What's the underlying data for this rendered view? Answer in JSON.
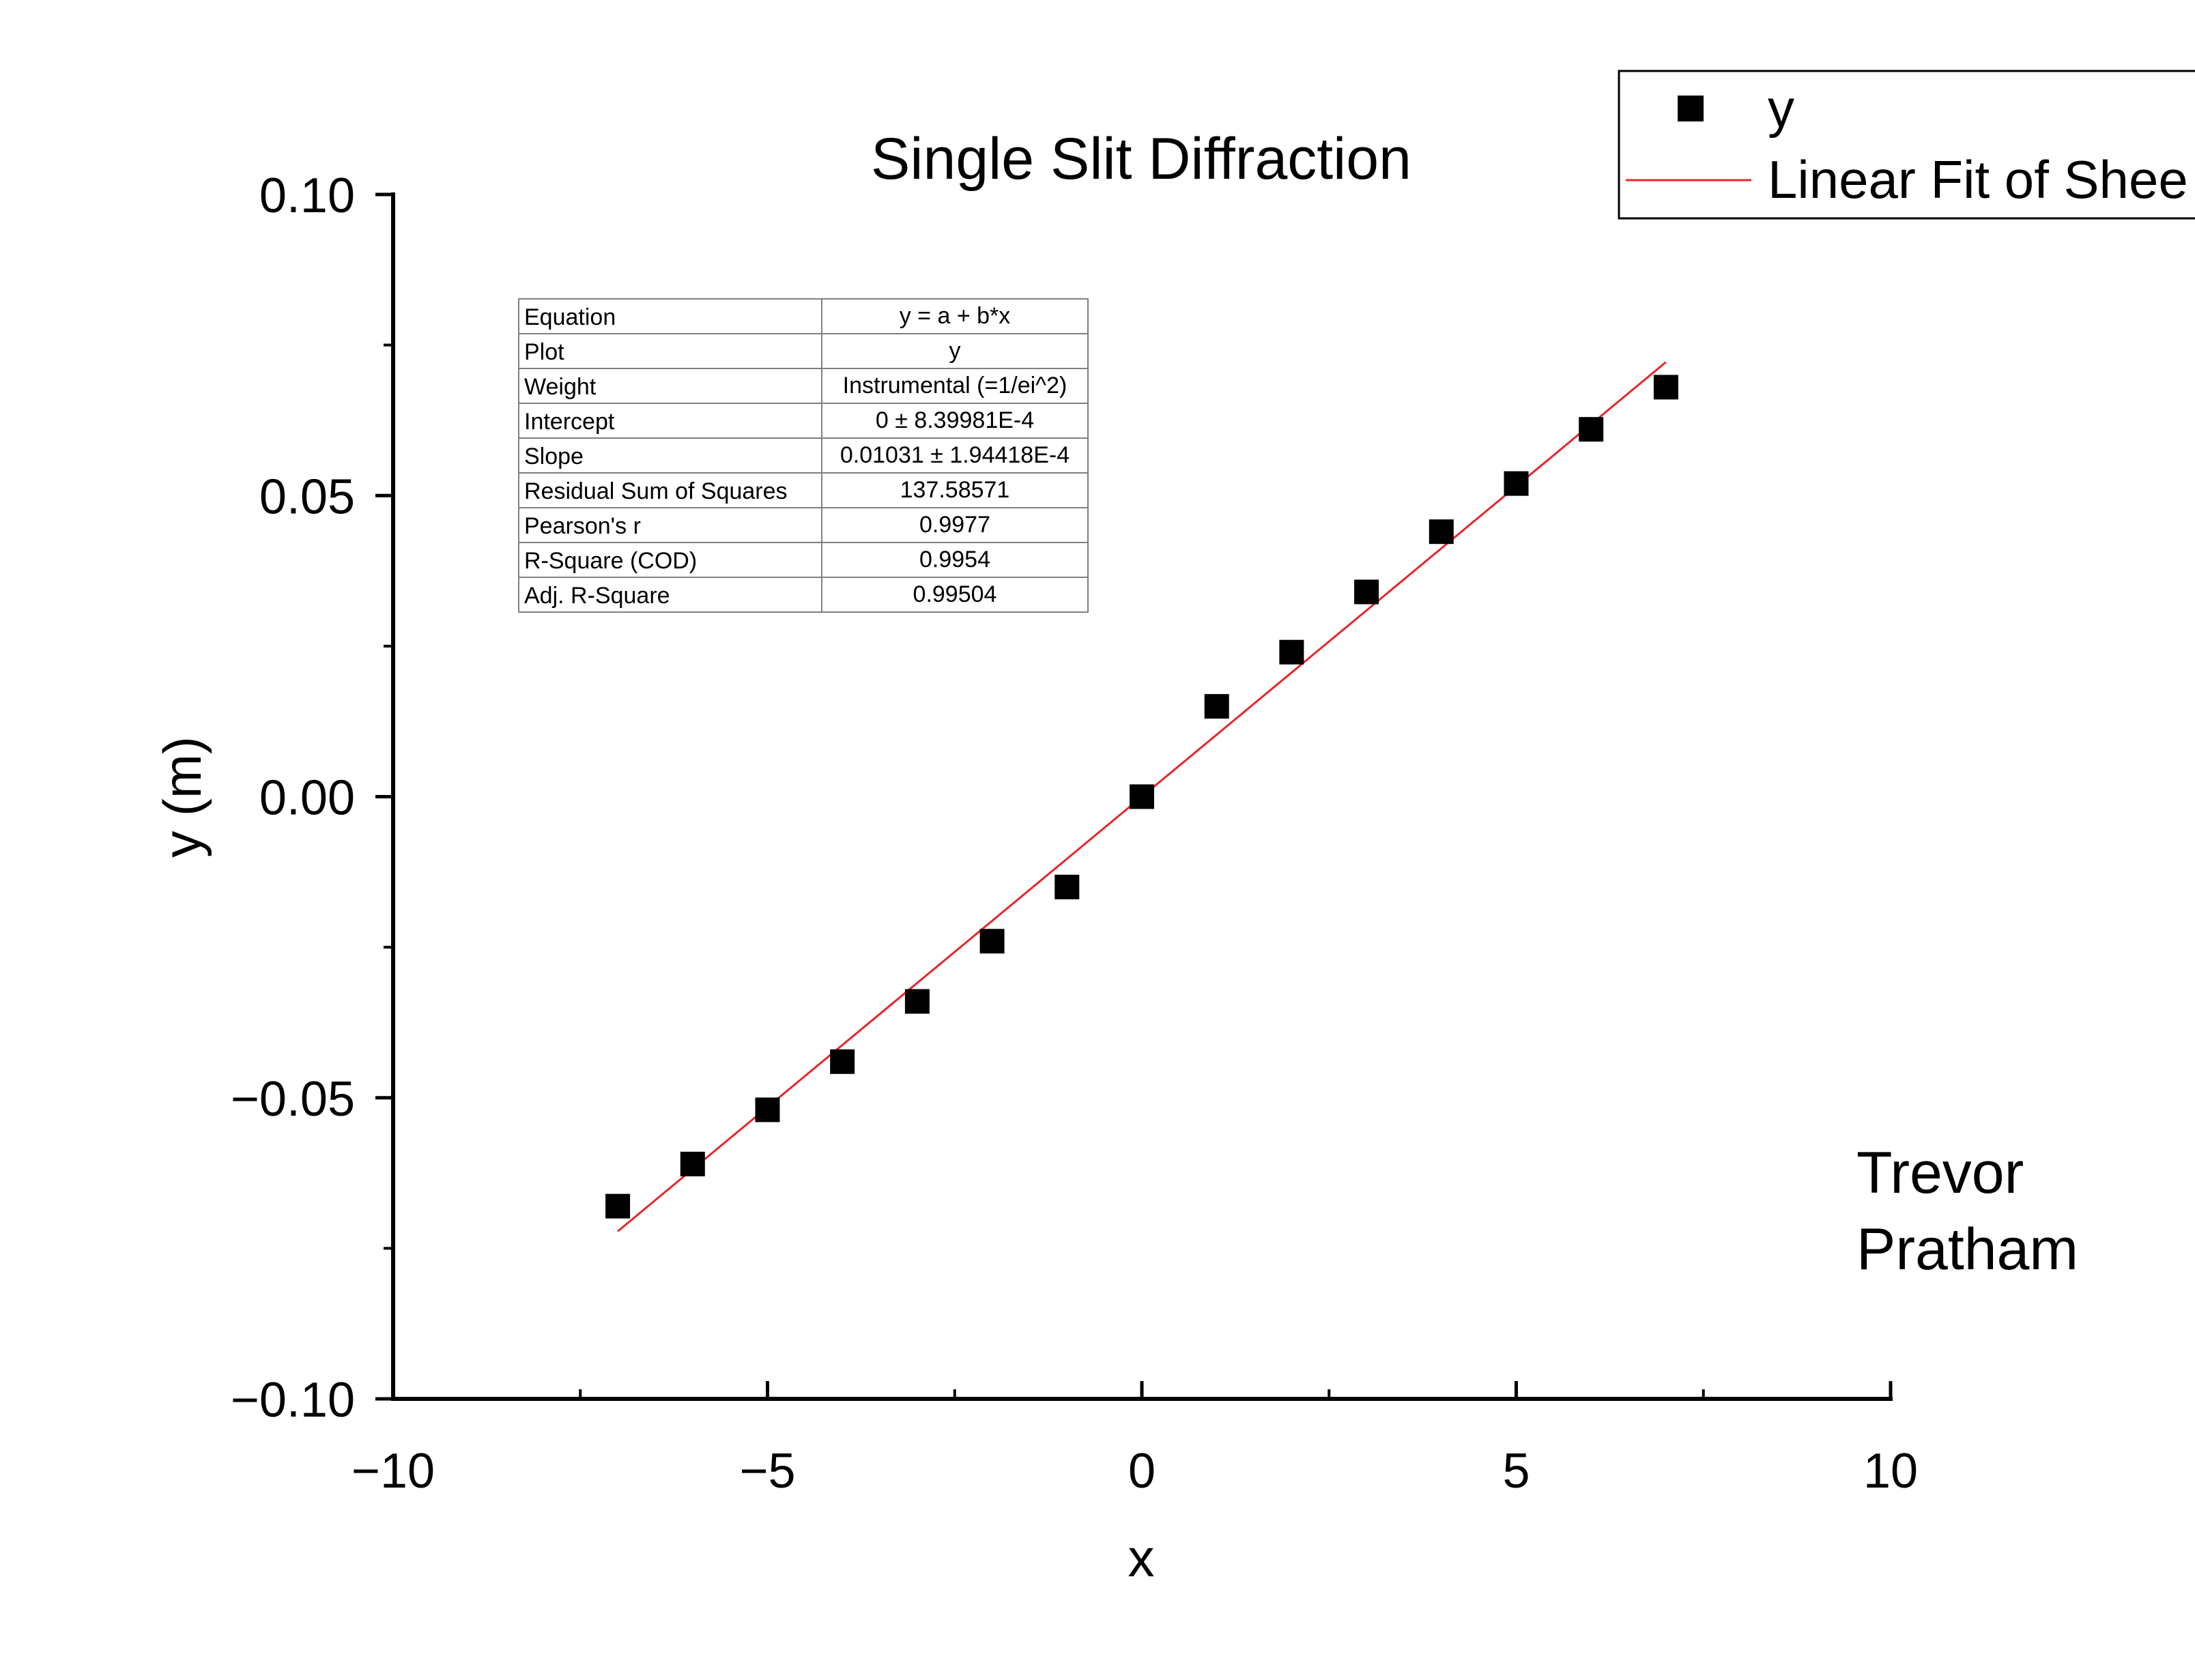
{
  "chart_data": {
    "type": "scatter",
    "title": "Single Slit Diffraction",
    "xlabel": "x",
    "ylabel": "y (m)",
    "xlim": [
      -10,
      10
    ],
    "ylim": [
      -0.1,
      0.1
    ],
    "x_ticks": [
      -10,
      -5,
      0,
      5,
      10
    ],
    "x_tick_labels": [
      "−10",
      "−5",
      "0",
      "5",
      "10"
    ],
    "y_ticks": [
      -0.1,
      -0.05,
      0.0,
      0.05,
      0.1
    ],
    "y_tick_labels": [
      "−0.10",
      "−0.05",
      "0.00",
      "0.05",
      "0.10"
    ],
    "grid": false,
    "legend_position": "top-right",
    "series": [
      {
        "name": "y",
        "type": "scatter",
        "marker": "square",
        "color": "#000000",
        "x": [
          -7,
          -6,
          -5,
          -4,
          -3,
          -2,
          -1,
          0,
          1,
          2,
          3,
          4,
          5,
          6,
          7
        ],
        "y": [
          -0.068,
          -0.061,
          -0.052,
          -0.044,
          -0.034,
          -0.024,
          -0.015,
          0.0,
          0.015,
          0.024,
          0.034,
          0.044,
          0.052,
          0.061,
          0.068
        ]
      },
      {
        "name": "Linear Fit of Shee",
        "type": "line",
        "color": "#e8262a",
        "x": [
          -7,
          7
        ],
        "y": [
          -0.07217,
          0.07217
        ]
      }
    ],
    "stats_table": [
      [
        "Equation",
        "y = a + b*x"
      ],
      [
        "Plot",
        "y"
      ],
      [
        "Weight",
        "Instrumental (=1/ei^2)"
      ],
      [
        "Intercept",
        "0 ± 8.39981E-4"
      ],
      [
        "Slope",
        "0.01031 ± 1.94418E-4"
      ],
      [
        "Residual Sum of Squares",
        "137.58571"
      ],
      [
        "Pearson's r",
        "0.9977"
      ],
      [
        "R-Square (COD)",
        "0.9954"
      ],
      [
        "Adj. R-Square",
        "0.99504"
      ]
    ],
    "annotation": [
      "Trevor",
      "Pratham"
    ]
  }
}
